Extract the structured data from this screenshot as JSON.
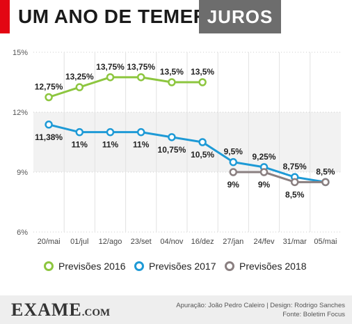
{
  "header": {
    "title": "UM ANO DE TEMER",
    "tag": "JUROS",
    "accent_color": "#e30613",
    "tag_color": "#6d6d6d"
  },
  "chart_data": {
    "type": "line",
    "categories": [
      "20/mai",
      "01/jul",
      "12/ago",
      "23/set",
      "04/nov",
      "16/dez",
      "27/jan",
      "24/fev",
      "31/mar",
      "05/mai"
    ],
    "y_ticks": [
      "6%",
      "9%",
      "12%",
      "15%"
    ],
    "ylim": [
      6,
      15
    ],
    "grid": true,
    "legend_position": "bottom",
    "series": [
      {
        "name": "Previsões 2016",
        "color": "#8dc63f",
        "values": [
          12.75,
          13.25,
          13.75,
          13.75,
          13.5,
          13.5,
          null,
          null,
          null,
          null
        ],
        "labels": [
          "12,75%",
          "13,25%",
          "13,75%",
          "13,75%",
          "13,5%",
          "13,5%",
          null,
          null,
          null,
          null
        ]
      },
      {
        "name": "Previsões 2017",
        "color": "#1e9ad6",
        "values": [
          11.38,
          11,
          11,
          11,
          10.75,
          10.5,
          9.5,
          9.25,
          8.75,
          8.5
        ],
        "labels": [
          "11,38%",
          "11%",
          "11%",
          "11%",
          "10,75%",
          "10,5%",
          "9,5%",
          "9,25%",
          "8,75%",
          "8,5%"
        ]
      },
      {
        "name": "Previsões 2018",
        "color": "#8a7f80",
        "values": [
          null,
          null,
          null,
          null,
          null,
          null,
          9,
          9,
          8.5,
          8.5
        ],
        "labels": [
          null,
          null,
          null,
          null,
          null,
          null,
          "9%",
          "9%",
          "8,5%",
          null
        ]
      }
    ]
  },
  "footer": {
    "logo_main": "EXAME",
    "logo_suffix": ".COM",
    "credits_line1": "Apuração: João Pedro Caleiro  |  Design: Rodrigo Sanches",
    "credits_line2": "Fonte: Boletim Focus"
  }
}
